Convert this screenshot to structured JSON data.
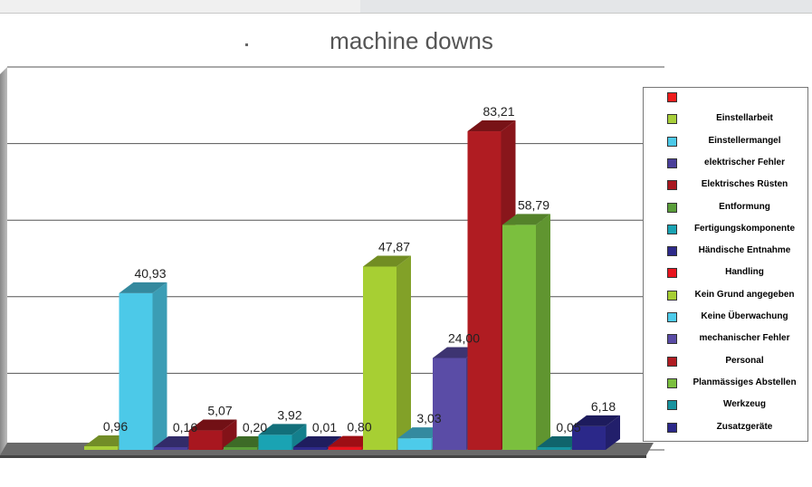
{
  "chart_data": {
    "type": "bar",
    "title": "machine downs",
    "xlabel": "",
    "ylabel": "",
    "ylim": [
      0,
      100
    ],
    "grid": true,
    "legend_position": "right",
    "series": [
      {
        "name": "",
        "value": 0,
        "label": "",
        "color": "#ee1c1c"
      },
      {
        "name": "Einstellarbeit",
        "value": 0.96,
        "label": "0,96",
        "color": "#a8cf3a"
      },
      {
        "name": "Einstellermangel",
        "value": 40.93,
        "label": "40,93",
        "color": "#4cc9e8"
      },
      {
        "name": "elektrischer Fehler",
        "value": 0.16,
        "label": "0,16",
        "color": "#4a3f9a"
      },
      {
        "name": "Elektrisches Rüsten",
        "value": 5.07,
        "label": "5,07",
        "color": "#a8171f"
      },
      {
        "name": "Entformung",
        "value": 0.2,
        "label": "0,20",
        "color": "#5a9e3a"
      },
      {
        "name": "Fertigungskomponente",
        "value": 3.92,
        "label": "3,92",
        "color": "#1aa3b3"
      },
      {
        "name": "Händische Entnahme",
        "value": 0.01,
        "label": "0,01",
        "color": "#2e2a8a"
      },
      {
        "name": "Handling",
        "value": 0.8,
        "label": "0,80",
        "color": "#e8141e"
      },
      {
        "name": "Kein Grund angegeben",
        "value": 47.87,
        "label": "47,87",
        "color": "#a7cf33"
      },
      {
        "name": "Keine Überwachung",
        "value": 3.03,
        "label": "3,03",
        "color": "#4dcbea"
      },
      {
        "name": "mechanischer Fehler",
        "value": 24.0,
        "label": "24,00",
        "color": "#5a4ca6"
      },
      {
        "name": "Personal",
        "value": 83.21,
        "label": "83,21",
        "color": "#b01c22"
      },
      {
        "name": "Planmässiges Abstellen",
        "value": 58.79,
        "label": "58,79",
        "color": "#7bbf3e"
      },
      {
        "name": "Werkzeug",
        "value": 0.05,
        "label": "0,05",
        "color": "#17939f"
      },
      {
        "name": "Zusatzgeräte",
        "value": 6.18,
        "label": "6,18",
        "color": "#2b2889"
      }
    ]
  }
}
